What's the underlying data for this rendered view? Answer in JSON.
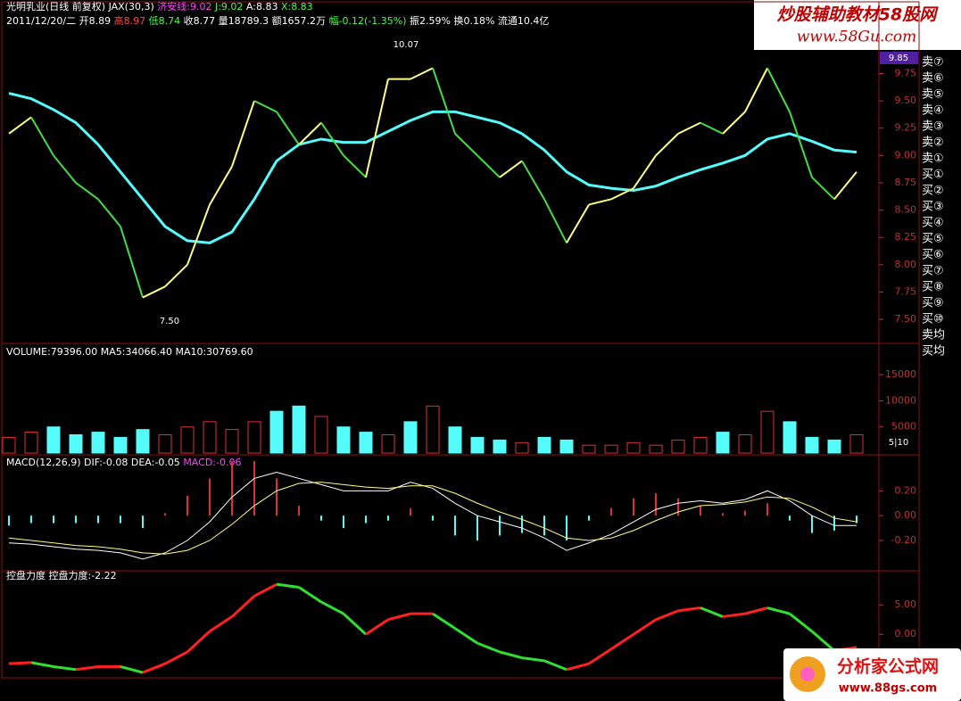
{
  "chart_data": [
    {
      "type": "line",
      "header_lines": [
        [
          {
            "text": "光明乳业(日线 前复权) JAX(30,3) ",
            "color": "#ffffff"
          },
          {
            "text": "济安线:9.02",
            "color": "#ff44ff"
          },
          {
            "text": " J:9.02",
            "color": "#44ff44"
          },
          {
            "text": " A:8.83",
            "color": "#ffffff"
          },
          {
            "text": " X:8.83",
            "color": "#44ff44"
          }
        ],
        [
          {
            "text": "2011/12/20/二 开8.89 ",
            "color": "#ffffff"
          },
          {
            "text": "高8.97",
            "color": "#ff4444"
          },
          {
            "text": " 低8.74",
            "color": "#44ff44"
          },
          {
            "text": " 收8.77 量18789.3 额1657.2万 ",
            "color": "#ffffff"
          },
          {
            "text": "幅-0.12(-1.35%)",
            "color": "#44ff44"
          },
          {
            "text": " 振2.59% 换0.18% 流通10.4亿",
            "color": "#ffffff"
          }
        ]
      ],
      "annotations": [
        "10.07",
        "7.50",
        "9.85"
      ],
      "categories": [
        null,
        null,
        null,
        null,
        null,
        null,
        null,
        null,
        null,
        null,
        null,
        null,
        null,
        null,
        null,
        null,
        null,
        null,
        null,
        null,
        null,
        null,
        null,
        null,
        null,
        null,
        null,
        null,
        null,
        null,
        null,
        null,
        null,
        null,
        null,
        null,
        null,
        null,
        null
      ],
      "series": [
        {
          "color": "#54fcfc",
          "values": [
            9.57,
            9.52,
            9.42,
            9.3,
            9.1,
            8.85,
            8.6,
            8.35,
            8.22,
            8.2,
            8.3,
            8.6,
            8.95,
            9.1,
            9.15,
            9.12,
            9.12,
            9.22,
            9.32,
            9.4,
            9.4,
            9.35,
            9.3,
            9.2,
            9.05,
            8.85,
            8.73,
            8.7,
            8.68,
            8.72,
            8.8,
            8.87,
            8.93,
            9.0,
            9.15,
            9.2,
            9.13,
            9.05,
            9.03
          ]
        },
        {
          "color": "#ffff80",
          "down_color": "#44dd44",
          "values": [
            9.2,
            9.35,
            9.0,
            8.75,
            8.6,
            8.35,
            7.7,
            7.8,
            8.0,
            8.55,
            8.9,
            9.5,
            9.4,
            9.1,
            9.3,
            9.0,
            8.8,
            9.7,
            9.7,
            9.8,
            9.2,
            9.0,
            8.8,
            8.95,
            8.6,
            8.2,
            8.55,
            8.6,
            8.7,
            9.0,
            9.2,
            9.3,
            9.2,
            9.4,
            9.8,
            9.4,
            8.8,
            8.6,
            8.85
          ]
        }
      ],
      "ylim": [
        7.28,
        9.95
      ],
      "yticks": [
        {
          "value": 7.5,
          "label": "7.50"
        },
        {
          "value": 7.75,
          "label": "7.75"
        },
        {
          "value": 8.0,
          "label": "8.00"
        },
        {
          "value": 8.25,
          "label": "8.25"
        },
        {
          "value": 8.5,
          "label": "8.50"
        },
        {
          "value": 8.75,
          "label": "8.75"
        },
        {
          "value": 9.0,
          "label": "9.00"
        },
        {
          "value": 9.25,
          "label": "9.25"
        },
        {
          "value": 9.5,
          "label": "9.50"
        },
        {
          "value": 9.75,
          "label": "9.75"
        }
      ]
    },
    {
      "type": "bar",
      "header_lines": [
        [
          {
            "text": "VOLUME:79396.00 MA5:34066.40 MA10:30769.60",
            "color": "#ffffff"
          }
        ]
      ],
      "annotations": [
        "5|10"
      ],
      "categories": [
        null,
        null,
        null,
        null,
        null,
        null,
        null,
        null,
        null,
        null,
        null,
        null,
        null,
        null,
        null,
        null,
        null,
        null,
        null,
        null,
        null,
        null,
        null,
        null,
        null,
        null,
        null,
        null,
        null,
        null,
        null,
        null,
        null,
        null,
        null,
        null,
        null,
        null,
        null
      ],
      "values": [
        3000,
        4000,
        5000,
        3500,
        4000,
        3000,
        4500,
        3500,
        5000,
        6000,
        4500,
        6000,
        8000,
        9000,
        7000,
        5000,
        4000,
        3500,
        6000,
        9000,
        5000,
        3000,
        2500,
        2000,
        3000,
        2500,
        1500,
        1500,
        2000,
        1500,
        2500,
        3000,
        4000,
        3500,
        8000,
        6000,
        3000,
        2500,
        3500
      ],
      "bar_colors": [
        "#e03030",
        "#e03030",
        "#54fcfc",
        "#54fcfc",
        "#54fcfc",
        "#54fcfc",
        "#54fcfc",
        "#e03030",
        "#e03030",
        "#e03030",
        "#e03030",
        "#e03030",
        "#54fcfc",
        "#54fcfc",
        "#e03030",
        "#54fcfc",
        "#54fcfc",
        "#e03030",
        "#54fcfc",
        "#e03030",
        "#54fcfc",
        "#54fcfc",
        "#54fcfc",
        "#e03030",
        "#54fcfc",
        "#54fcfc",
        "#e03030",
        "#e03030",
        "#e03030",
        "#e03030",
        "#e03030",
        "#e03030",
        "#54fcfc",
        "#e03030",
        "#e03030",
        "#54fcfc",
        "#54fcfc",
        "#54fcfc",
        "#e03030"
      ],
      "ylim": [
        0,
        21000
      ],
      "yticks": [
        5000,
        10000,
        15000
      ]
    },
    {
      "type": "line",
      "header_lines": [
        [
          {
            "text": "MACD(12,26,9) DIF:-0.08 DEA:-0.05 ",
            "color": "#ffffff"
          },
          {
            "text": "MACD:-0.06",
            "color": "#ff44ff"
          }
        ]
      ],
      "annotations": [],
      "categories": [
        null,
        null,
        null,
        null,
        null,
        null,
        null,
        null,
        null,
        null,
        null,
        null,
        null,
        null,
        null,
        null,
        null,
        null,
        null,
        null,
        null,
        null,
        null,
        null,
        null,
        null,
        null,
        null,
        null,
        null,
        null,
        null,
        null,
        null,
        null,
        null,
        null,
        null,
        null
      ],
      "series": [
        {
          "style": "stick",
          "up_color": "#e03030",
          "down_color": "#54fcfc",
          "values": [
            -0.08,
            -0.06,
            -0.06,
            -0.06,
            -0.06,
            -0.06,
            -0.1,
            0.02,
            0.16,
            0.3,
            0.44,
            0.44,
            0.3,
            0.08,
            -0.04,
            -0.1,
            -0.06,
            -0.04,
            0.06,
            -0.04,
            -0.16,
            -0.2,
            -0.16,
            -0.14,
            -0.16,
            -0.2,
            -0.04,
            0.06,
            0.14,
            0.18,
            0.14,
            0.08,
            0.02,
            0.04,
            0.1,
            -0.04,
            -0.14,
            -0.12,
            -0.06
          ]
        },
        {
          "color": "#ffffff",
          "values": [
            -0.22,
            -0.23,
            -0.25,
            -0.27,
            -0.28,
            -0.3,
            -0.35,
            -0.3,
            -0.2,
            -0.05,
            0.15,
            0.3,
            0.35,
            0.3,
            0.25,
            0.2,
            0.2,
            0.2,
            0.27,
            0.22,
            0.1,
            0.0,
            -0.05,
            -0.1,
            -0.18,
            -0.28,
            -0.22,
            -0.15,
            -0.05,
            0.05,
            0.1,
            0.12,
            0.1,
            0.13,
            0.2,
            0.12,
            0.0,
            -0.08,
            -0.08
          ]
        },
        {
          "color": "#ffff80",
          "values": [
            -0.18,
            -0.2,
            -0.22,
            -0.24,
            -0.25,
            -0.27,
            -0.3,
            -0.31,
            -0.28,
            -0.2,
            -0.07,
            0.08,
            0.2,
            0.26,
            0.27,
            0.25,
            0.23,
            0.22,
            0.24,
            0.24,
            0.18,
            0.1,
            0.03,
            -0.03,
            -0.1,
            -0.18,
            -0.2,
            -0.18,
            -0.12,
            -0.04,
            0.03,
            0.08,
            0.09,
            0.11,
            0.15,
            0.14,
            0.07,
            -0.02,
            -0.05
          ]
        }
      ],
      "ylim": [
        -0.43,
        0.49
      ],
      "yticks": [
        {
          "value": -0.2,
          "label": "-0.20"
        },
        {
          "value": 0,
          "label": "0.00"
        },
        {
          "value": 0.2,
          "label": "0.20"
        }
      ]
    },
    {
      "type": "line",
      "header_lines": [
        [
          {
            "text": "控盘力度 控盘力度:-2.22",
            "color": "#ffffff"
          }
        ]
      ],
      "annotations": [],
      "categories": [
        null,
        null,
        null,
        null,
        null,
        null,
        null,
        null,
        null,
        null,
        null,
        null,
        null,
        null,
        null,
        null,
        null,
        null,
        null,
        null,
        null,
        null,
        null,
        null,
        null,
        null,
        null,
        null,
        null,
        null,
        null,
        null,
        null,
        null,
        null,
        null,
        null,
        null,
        null
      ],
      "series": [
        {
          "color": "#ff2020",
          "down_color": "#30e030",
          "values": [
            -5,
            -4.8,
            -5.5,
            -6,
            -5.5,
            -5.5,
            -6.5,
            -5,
            -3,
            0.5,
            3,
            6.5,
            8.5,
            8,
            5.5,
            3.5,
            0,
            2.5,
            3.5,
            3.5,
            1,
            -1.5,
            -3,
            -4,
            -4.5,
            -6,
            -5,
            -2.5,
            0,
            2.5,
            4,
            4.5,
            3,
            3.5,
            4.5,
            3.5,
            0.5,
            -2.8,
            -2.22
          ]
        }
      ],
      "ylim": [
        -7.4,
        10.8
      ],
      "yticks": [
        {
          "value": 0,
          "label": "0.00"
        },
        {
          "value": 5,
          "label": "5.00"
        }
      ]
    }
  ],
  "side_list": [
    "卖⑦",
    "卖⑥",
    "卖⑤",
    "卖④",
    "卖③",
    "卖②",
    "卖①",
    "买①",
    "买②",
    "买③",
    "买④",
    "买⑤",
    "买⑥",
    "买⑦",
    "买⑧",
    "买⑨",
    "买⑩",
    "卖均",
    "买均"
  ],
  "watermarks": {
    "top": "炒股辅助教材58股网",
    "top_url": "www.58Gu.com",
    "bottom": "分析家公式网",
    "bottom_url": "www.88gs.com"
  }
}
